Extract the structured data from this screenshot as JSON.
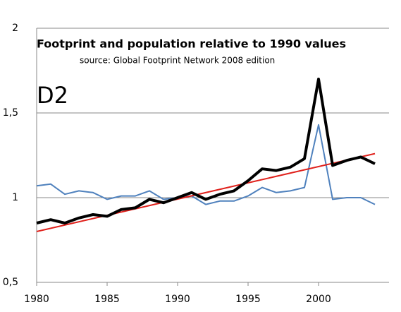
{
  "chart_data": {
    "type": "line",
    "title": "Footprint and population relative to 1990 values",
    "subtitle": "source: Global Footprint Network 2008 edition",
    "annotation": "D2",
    "x": [
      1980,
      1981,
      1982,
      1983,
      1984,
      1985,
      1986,
      1987,
      1988,
      1989,
      1990,
      1991,
      1992,
      1993,
      1994,
      1995,
      1996,
      1997,
      1998,
      1999,
      2000,
      2001,
      2002,
      2003,
      2004
    ],
    "series": [
      {
        "color": "#4f81bd",
        "width": 2,
        "values": [
          1.07,
          1.08,
          1.02,
          1.04,
          1.03,
          0.99,
          1.01,
          1.01,
          1.04,
          0.99,
          1.0,
          1.01,
          0.96,
          0.98,
          0.98,
          1.01,
          1.06,
          1.03,
          1.04,
          1.06,
          1.43,
          0.99,
          1.0,
          1.0,
          0.96
        ]
      },
      {
        "color": "#e0201b",
        "width": 2,
        "x": [
          1980,
          2004
        ],
        "values": [
          0.8,
          1.26
        ]
      },
      {
        "color": "#000000",
        "width": 4,
        "values": [
          0.85,
          0.87,
          0.85,
          0.88,
          0.9,
          0.89,
          0.93,
          0.94,
          0.99,
          0.97,
          1.0,
          1.03,
          0.99,
          1.02,
          1.04,
          1.1,
          1.17,
          1.16,
          1.18,
          1.23,
          1.7,
          1.19,
          1.22,
          1.24,
          1.2
        ]
      }
    ],
    "xlim": [
      1980,
      2005
    ],
    "xticks": [
      1980,
      1985,
      1990,
      1995,
      2000
    ],
    "ylim": [
      0.5,
      2
    ],
    "yticks": [
      {
        "value": 0.5,
        "label": "0,5"
      },
      1,
      {
        "value": 1.5,
        "label": "1,5"
      },
      2
    ],
    "grid": true
  }
}
